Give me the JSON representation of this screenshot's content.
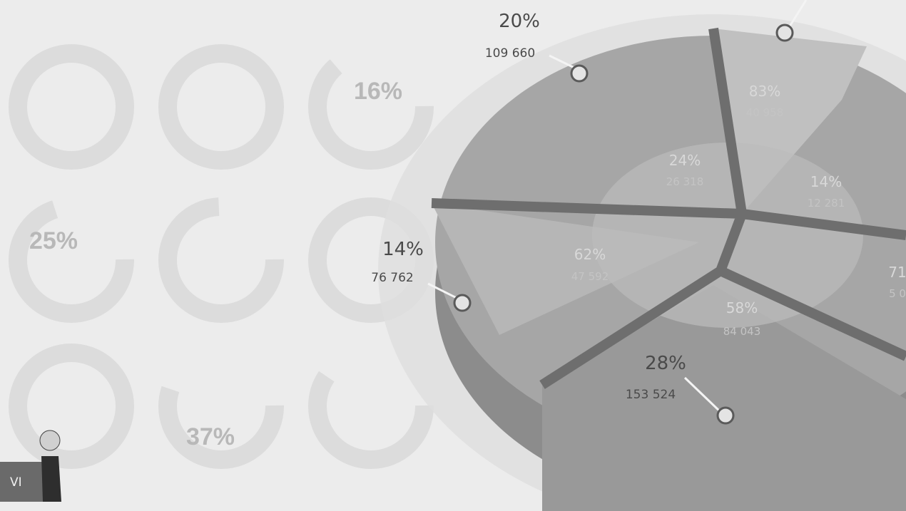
{
  "donut_labels": [
    "16%",
    "25%",
    "37%"
  ],
  "callouts": [
    {
      "percent": "20%",
      "value": "109 660"
    },
    {
      "percent": "14%",
      "value": "76 762"
    },
    {
      "percent": "28%",
      "value": "153 524"
    }
  ],
  "inner_labels": [
    {
      "percent": "83%",
      "value": "40 958"
    },
    {
      "percent": "24%",
      "value": "26 318"
    },
    {
      "percent": "14%",
      "value": "12 281"
    },
    {
      "percent": "62%",
      "value": "47 592"
    },
    {
      "percent": "58%",
      "value": "84 043"
    },
    {
      "percent": "71",
      "value": "5 0"
    }
  ],
  "corner": "VI"
}
